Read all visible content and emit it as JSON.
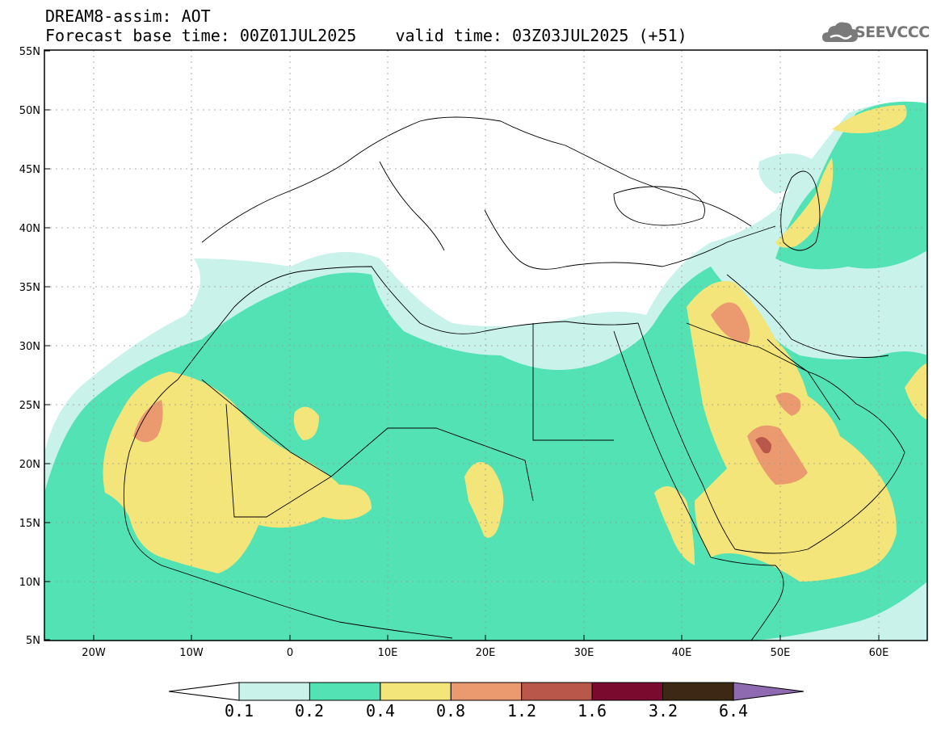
{
  "header": {
    "title_line1": "DREAM8-assim: AOT",
    "title_line2": "Forecast base time: 00Z01JUL2025    valid time: 03Z03JUL2025 (+51)"
  },
  "logo": {
    "text": "SEEVCCC",
    "icon": "cloud-icon"
  },
  "map": {
    "variable": "AOT",
    "lon_range": [
      -25,
      65
    ],
    "lat_range": [
      5,
      55
    ],
    "lat_ticks": [
      "55N",
      "50N",
      "45N",
      "40N",
      "35N",
      "30N",
      "25N",
      "20N",
      "15N",
      "10N",
      "5N"
    ],
    "lon_ticks": [
      "20W",
      "10W",
      "0",
      "10E",
      "20E",
      "30E",
      "40E",
      "50E",
      "60E"
    ],
    "grid": true
  },
  "colorbar": {
    "labels": [
      "0.1",
      "0.2",
      "0.4",
      "0.8",
      "1.2",
      "1.6",
      "3.2",
      "6.4"
    ],
    "colors": [
      "#c9f2ea",
      "#52e2b4",
      "#f3e57a",
      "#ea9a6e",
      "#b8574a",
      "#7a0a2e",
      "#3d2815",
      "#8e6ab0"
    ]
  }
}
